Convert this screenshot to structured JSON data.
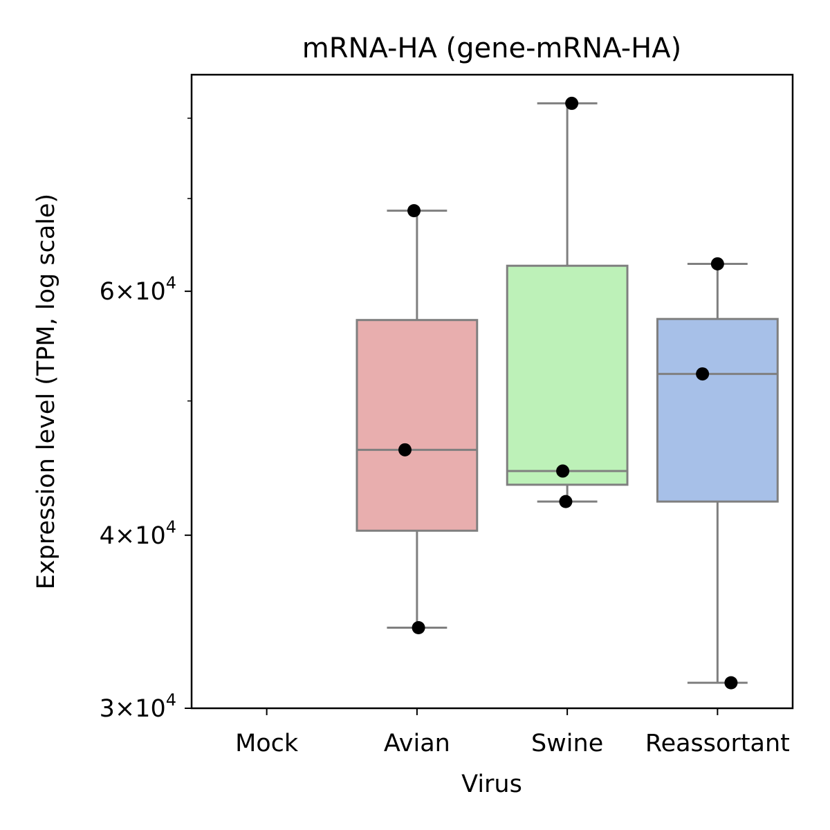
{
  "chart_data": {
    "type": "box",
    "title": "mRNA-HA (gene-mRNA-HA)",
    "xlabel": "Virus",
    "ylabel": "Expression level (TPM, log scale)",
    "y_scale": "log",
    "ylim": [
      30000,
      86000
    ],
    "categories": [
      "Mock",
      "Avian",
      "Swine",
      "Reassortant"
    ],
    "y_ticks": [
      {
        "value": 30000,
        "mantissa": "3",
        "times": "×",
        "base": "10",
        "exponent": "4"
      },
      {
        "value": 40000,
        "mantissa": "4",
        "times": "×",
        "base": "10",
        "exponent": "4"
      },
      {
        "value": 60000,
        "mantissa": "6",
        "times": "×",
        "base": "10",
        "exponent": "4"
      }
    ],
    "y_minor_ticks": [
      50000,
      70000,
      80000
    ],
    "boxes": [
      {
        "category": "Mock",
        "has_data": false
      },
      {
        "category": "Avian",
        "has_data": true,
        "color": "#e8aeae",
        "q1": 40300,
        "median": 46100,
        "q3": 57200,
        "whisker_low": 34300,
        "whisker_high": 68600,
        "points": [
          {
            "jitter": -0.08,
            "y": 46100
          },
          {
            "jitter": 0.01,
            "y": 34300
          },
          {
            "jitter": -0.02,
            "y": 68600
          }
        ]
      },
      {
        "category": "Swine",
        "has_data": true,
        "color": "#bdf1b8",
        "q1": 43500,
        "median": 44500,
        "q3": 62600,
        "whisker_low": 42300,
        "whisker_high": 82000,
        "points": [
          {
            "jitter": -0.03,
            "y": 44500
          },
          {
            "jitter": -0.01,
            "y": 42300
          },
          {
            "jitter": 0.03,
            "y": 82000
          }
        ]
      },
      {
        "category": "Reassortant",
        "has_data": true,
        "color": "#a7c0e8",
        "q1": 42300,
        "median": 52300,
        "q3": 57300,
        "whisker_low": 31300,
        "whisker_high": 62800,
        "points": [
          {
            "jitter": -0.1,
            "y": 52300
          },
          {
            "jitter": 0.09,
            "y": 31300
          },
          {
            "jitter": 0.0,
            "y": 62800
          }
        ]
      }
    ],
    "box_edge_color": "#7f7f7f",
    "point_color": "#000000",
    "grid": false,
    "legend": "none"
  }
}
